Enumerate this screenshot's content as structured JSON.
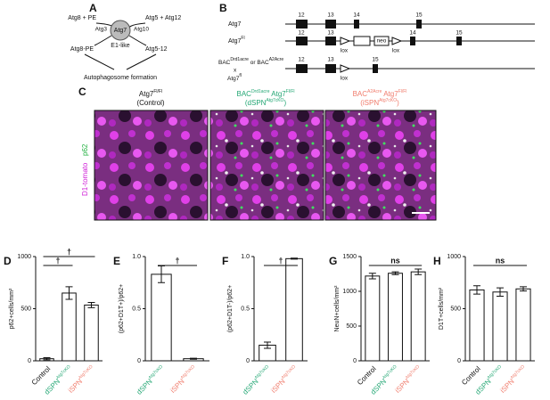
{
  "panel_labels": [
    "A",
    "B",
    "C"
  ],
  "panel_a": {
    "left_input": "Atg8 + PE",
    "right_input": "Atg5 + Atg12",
    "left_e2": "Atg3",
    "enzyme": "Atg7",
    "right_e2": "Atg10",
    "enzyme_note": "E1-like",
    "left_product": "Atg8-PE",
    "right_product": "Atg5-12",
    "outcome": "Autophagosome formation"
  },
  "panel_b": {
    "rows": [
      {
        "name": "Atg7",
        "name_sup": "",
        "exons": [
          "12",
          "13",
          "14",
          "15"
        ]
      },
      {
        "name": "Atg7",
        "name_sup": "Fl",
        "exons": [
          "12",
          "13",
          "14",
          "15"
        ],
        "cassette": "neo",
        "lox": "lox"
      },
      {
        "name": "BAC",
        "name_sup": "Drd1acre",
        "name_mid": " or BAC",
        "name_sup2": "A2Acre",
        "name_x": "x",
        "name_line3": "Atg7",
        "name_sup3": "fl",
        "exons": [
          "12",
          "13",
          "15"
        ],
        "lox": "lox"
      }
    ]
  },
  "panel_c": {
    "columns": [
      {
        "line1": "Atg7",
        "line1_sup": "Fl/Fl",
        "line2": "(Control)",
        "line2_sup": ""
      },
      {
        "line1": "BAC",
        "line1_sup": "Drd1acre",
        "line1_b": " Atg7",
        "line1_sup_b": "Fl/Fl",
        "line2": "(dSPN",
        "line2_sup": "Atg7cKO",
        "line2_end": ")"
      },
      {
        "line1": "BAC",
        "line1_sup": "A2Acre",
        "line1_b": " Atg7",
        "line1_sup_b": "Fl/Fl",
        "line2": "(iSPN",
        "line2_sup": "Atg7cKO",
        "line2_end": ")"
      }
    ],
    "stain_1": "D1-tomato",
    "stain_2": "p62"
  },
  "chart_data": [
    {
      "type": "bar",
      "label": "D",
      "ylabel": "p62+cells/mm²",
      "categories": [
        "Control",
        "dSPN",
        "iSPN"
      ],
      "category_sups": [
        "",
        "Atg7cKO",
        "Atg7cKO"
      ],
      "category_colors": [
        "#111111",
        "#22a673",
        "#f07b6b"
      ],
      "values": [
        20,
        650,
        535
      ],
      "errors": [
        10,
        60,
        25
      ],
      "ylim": [
        0,
        1000
      ],
      "yticks": [
        0,
        500,
        1000
      ],
      "annotations": [
        "†",
        "†"
      ]
    },
    {
      "type": "bar",
      "label": "E",
      "ylabel": "(p62+D1T+)/p62+",
      "categories": [
        "dSPN",
        "iSPN"
      ],
      "category_sups": [
        "Atg7cKO",
        "Atg7cKO"
      ],
      "category_colors": [
        "#22a673",
        "#f07b6b"
      ],
      "values": [
        0.83,
        0.02
      ],
      "errors": [
        0.08,
        0.005
      ],
      "ylim": [
        0,
        1
      ],
      "yticks": [
        0,
        0.5,
        {
          "value": 1,
          "label": "1.0"
        }
      ],
      "annotations": [
        "†"
      ]
    },
    {
      "type": "bar",
      "label": "F",
      "ylabel": "(p62+D1T-)/p62+",
      "categories": [
        "dSPN",
        "iSPN"
      ],
      "category_sups": [
        "Atg7cKO",
        "Atg7cKO"
      ],
      "category_colors": [
        "#22a673",
        "#f07b6b"
      ],
      "values": [
        0.15,
        0.98
      ],
      "errors": [
        0.03,
        0.005
      ],
      "ylim": [
        0,
        1
      ],
      "yticks": [
        0,
        0.5,
        {
          "value": 1,
          "label": "1.0"
        }
      ],
      "annotations": [
        "†"
      ]
    },
    {
      "type": "bar",
      "label": "G",
      "ylabel": "NeuN+cells/mm²",
      "categories": [
        "Control",
        "dSPN",
        "iSPN"
      ],
      "category_sups": [
        "",
        "Atg7cKO",
        "Atg7cKO"
      ],
      "category_colors": [
        "#111111",
        "#22a673",
        "#f07b6b"
      ],
      "values": [
        1220,
        1260,
        1280
      ],
      "errors": [
        40,
        20,
        40
      ],
      "ylim": [
        0,
        1500
      ],
      "yticks": [
        0,
        500,
        1000,
        1500
      ],
      "annotations": [
        "ns"
      ]
    },
    {
      "type": "bar",
      "label": "H",
      "ylabel": "D1T+cells/mm²",
      "categories": [
        "Control",
        "dSPN",
        "iSPN"
      ],
      "category_sups": [
        "",
        "Atg7cKO",
        "Atg7cKO"
      ],
      "category_colors": [
        "#111111",
        "#22a673",
        "#f07b6b"
      ],
      "values": [
        680,
        660,
        690
      ],
      "errors": [
        40,
        40,
        20
      ],
      "ylim": [
        0,
        1000
      ],
      "yticks": [
        0,
        500,
        1000
      ],
      "annotations": [
        "ns"
      ]
    }
  ]
}
